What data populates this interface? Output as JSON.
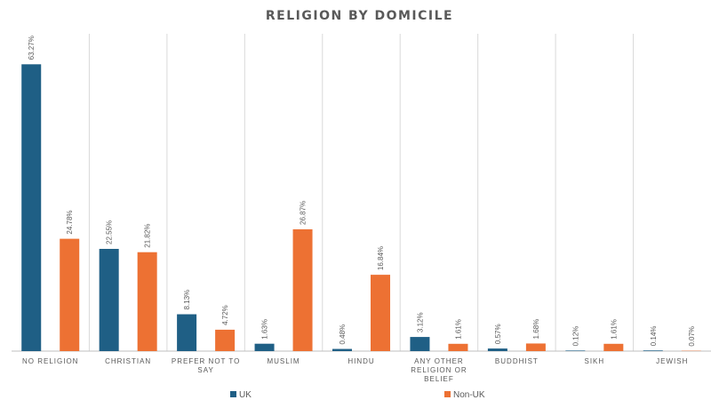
{
  "chart_data": {
    "type": "bar",
    "title": "RELIGION BY DOMICILE",
    "xlabel": "",
    "ylabel": "",
    "ylim": [
      0,
      70
    ],
    "grid": "vertical category separators",
    "legend": "bottom",
    "categories": [
      "NO RELIGION",
      "CHRISTIAN",
      "PREFER NOT TO SAY",
      "MUSLIM",
      "HINDU",
      "ANY OTHER RELIGION OR BELIEF",
      "BUDDHIST",
      "SIKH",
      "JEWISH"
    ],
    "series": [
      {
        "name": "UK",
        "color": "#1f5f85",
        "values": [
          63.27,
          22.55,
          8.13,
          1.63,
          0.48,
          3.12,
          0.57,
          0.12,
          0.14
        ],
        "labels": [
          "63.27%",
          "22.55%",
          "8.13%",
          "1.63%",
          "0.48%",
          "3.12%",
          "0.57%",
          "0.12%",
          "0.14%"
        ]
      },
      {
        "name": "Non-UK",
        "color": "#ed7133",
        "values": [
          24.78,
          21.82,
          4.72,
          26.87,
          16.84,
          1.61,
          1.68,
          1.61,
          0.07
        ],
        "labels": [
          "24.78%",
          "21.82%",
          "4.72%",
          "26.87%",
          "16.84%",
          "1.61%",
          "1.68%",
          "1.61%",
          "0.07%"
        ]
      }
    ]
  }
}
